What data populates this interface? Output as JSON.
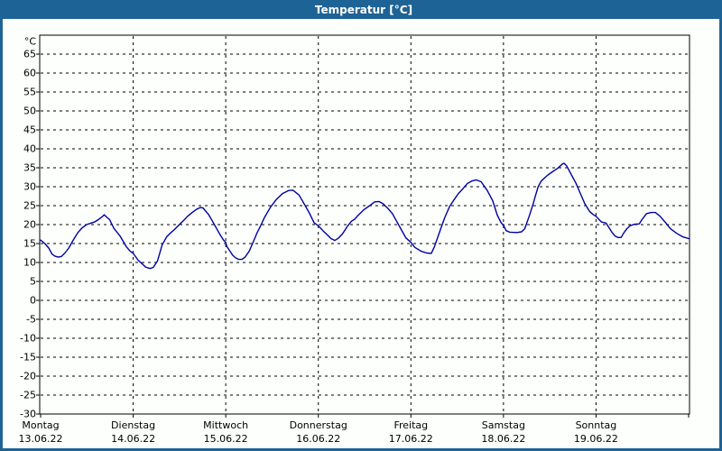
{
  "window": {
    "title": "Temperatur [°C]"
  },
  "colors": {
    "titlebar_bg": "#1E6396",
    "titlebar_text": "#FFFFFF",
    "window_border": "#1E6396",
    "background": "#FCFFFC",
    "plot_border": "#000000",
    "grid": "#000000",
    "axis_text": "#000000",
    "line": "#0000A0"
  },
  "chart_data": {
    "type": "line",
    "title": "Temperatur [°C]",
    "ylabel": "°C",
    "ylim": [
      -30,
      70
    ],
    "xlim_hours": [
      0,
      168
    ],
    "grid": "dashed, horizontal every 5°C, vertical at each day boundary",
    "legend_position": "none",
    "y_ticks": [
      65,
      60,
      55,
      50,
      45,
      40,
      35,
      30,
      25,
      20,
      15,
      10,
      5,
      0,
      -5,
      -10,
      -15,
      -20,
      -25,
      -30
    ],
    "x_ticks": [
      {
        "t": 0,
        "day": "Montag",
        "date": "13.06.22"
      },
      {
        "t": 24,
        "day": "Dienstag",
        "date": "14.06.22"
      },
      {
        "t": 48,
        "day": "Mittwoch",
        "date": "15.06.22"
      },
      {
        "t": 72,
        "day": "Donnerstag",
        "date": "16.06.22"
      },
      {
        "t": 96,
        "day": "Freitag",
        "date": "17.06.22"
      },
      {
        "t": 120,
        "day": "Samstag",
        "date": "18.06.22"
      },
      {
        "t": 144,
        "day": "Sonntag",
        "date": "19.06.22"
      },
      {
        "t": 168,
        "day": "",
        "date": ""
      }
    ],
    "series": [
      {
        "name": "Temperatur",
        "unit": "°C",
        "points": [
          [
            0,
            15.9
          ],
          [
            1.1,
            15.0
          ],
          [
            2.1,
            13.8
          ],
          [
            3,
            12.2
          ],
          [
            3.7,
            11.7
          ],
          [
            4.6,
            11.4
          ],
          [
            5.4,
            11.6
          ],
          [
            6.3,
            12.5
          ],
          [
            7.3,
            13.8
          ],
          [
            8.4,
            15.8
          ],
          [
            9.6,
            17.8
          ],
          [
            10.8,
            19.2
          ],
          [
            11.9,
            20.0
          ],
          [
            13.1,
            20.4
          ],
          [
            14,
            20.7
          ],
          [
            15.1,
            21.4
          ],
          [
            16.1,
            22.2
          ],
          [
            16.5,
            22.6
          ],
          [
            17.1,
            22.0
          ],
          [
            17.9,
            21.3
          ],
          [
            19,
            19.0
          ],
          [
            20.6,
            17.0
          ],
          [
            22.2,
            14.2
          ],
          [
            23.2,
            13.0
          ],
          [
            24,
            12.4
          ],
          [
            25.3,
            10.6
          ],
          [
            26.4,
            9.6
          ],
          [
            27.2,
            8.8
          ],
          [
            28.3,
            8.4
          ],
          [
            29.2,
            8.7
          ],
          [
            30.3,
            10.4
          ],
          [
            31.5,
            14.6
          ],
          [
            32.7,
            16.8
          ],
          [
            33.7,
            17.8
          ],
          [
            34.6,
            18.6
          ],
          [
            35.8,
            19.8
          ],
          [
            37,
            21.0
          ],
          [
            38.1,
            22.2
          ],
          [
            39.3,
            23.2
          ],
          [
            40.5,
            24.1
          ],
          [
            41.4,
            24.5
          ],
          [
            42.1,
            24.4
          ],
          [
            43.6,
            22.6
          ],
          [
            44.5,
            21.0
          ],
          [
            45.6,
            19.0
          ],
          [
            46.6,
            17.2
          ],
          [
            47.5,
            15.8
          ],
          [
            48,
            15.3
          ],
          [
            48.3,
            14.2
          ],
          [
            49.1,
            13.0
          ],
          [
            49.8,
            11.9
          ],
          [
            50.6,
            11.2
          ],
          [
            51.4,
            10.8
          ],
          [
            52.2,
            10.8
          ],
          [
            53,
            11.4
          ],
          [
            54.1,
            13.0
          ],
          [
            55.3,
            15.8
          ],
          [
            56.1,
            17.8
          ],
          [
            56.9,
            19.4
          ],
          [
            58,
            21.8
          ],
          [
            59.6,
            24.6
          ],
          [
            61.1,
            26.6
          ],
          [
            62.7,
            28.2
          ],
          [
            64.3,
            29.0
          ],
          [
            65.4,
            29.1
          ],
          [
            67,
            27.8
          ],
          [
            68.6,
            25.0
          ],
          [
            69.7,
            23.0
          ],
          [
            70.9,
            20.5
          ],
          [
            72,
            19.7
          ],
          [
            73.2,
            18.4
          ],
          [
            74.4,
            17.2
          ],
          [
            75.3,
            16.3
          ],
          [
            76.3,
            15.8
          ],
          [
            77.2,
            16.4
          ],
          [
            78.3,
            17.6
          ],
          [
            79.5,
            19.5
          ],
          [
            80.6,
            20.9
          ],
          [
            81.4,
            21.4
          ],
          [
            82.2,
            22.3
          ],
          [
            83.8,
            23.9
          ],
          [
            85.3,
            25.0
          ],
          [
            86.6,
            26.0
          ],
          [
            87.7,
            26.1
          ],
          [
            88.8,
            25.5
          ],
          [
            90,
            24.3
          ],
          [
            91.2,
            22.9
          ],
          [
            92.4,
            20.7
          ],
          [
            93.5,
            18.7
          ],
          [
            94.7,
            16.5
          ],
          [
            96,
            15.3
          ],
          [
            97,
            14.0
          ],
          [
            98.6,
            13.0
          ],
          [
            100.1,
            12.5
          ],
          [
            101.3,
            12.4
          ],
          [
            102.1,
            14.2
          ],
          [
            103.7,
            18.8
          ],
          [
            104.8,
            21.9
          ],
          [
            106,
            24.7
          ],
          [
            107.2,
            26.6
          ],
          [
            108.3,
            28.2
          ],
          [
            109.5,
            29.5
          ],
          [
            110.7,
            30.9
          ],
          [
            111.8,
            31.5
          ],
          [
            112.9,
            31.8
          ],
          [
            114.2,
            31.3
          ],
          [
            115.8,
            29.0
          ],
          [
            117.2,
            26.3
          ],
          [
            118.4,
            22.5
          ],
          [
            119.4,
            20.5
          ],
          [
            120,
            19.8
          ],
          [
            120.7,
            18.4
          ],
          [
            121.6,
            18.0
          ],
          [
            123.5,
            17.9
          ],
          [
            124.7,
            18.1
          ],
          [
            125.5,
            18.9
          ],
          [
            126.7,
            22.3
          ],
          [
            127.8,
            25.8
          ],
          [
            128.2,
            27.3
          ],
          [
            129,
            30.0
          ],
          [
            129.8,
            31.5
          ],
          [
            131.4,
            33.0
          ],
          [
            132.5,
            33.8
          ],
          [
            134.1,
            34.9
          ],
          [
            135.3,
            36.0
          ],
          [
            135.7,
            36.2
          ],
          [
            136.4,
            35.5
          ],
          [
            137.2,
            33.9
          ],
          [
            138.8,
            30.9
          ],
          [
            139.9,
            28.3
          ],
          [
            141.1,
            25.5
          ],
          [
            142.3,
            23.5
          ],
          [
            143.2,
            22.7
          ],
          [
            144,
            22.2
          ],
          [
            145.4,
            20.7
          ],
          [
            146.6,
            20.4
          ],
          [
            148.1,
            18.0
          ],
          [
            148.9,
            17.0
          ],
          [
            149.7,
            16.6
          ],
          [
            150.5,
            16.6
          ],
          [
            151.2,
            17.8
          ],
          [
            152,
            18.9
          ],
          [
            152.8,
            19.7
          ],
          [
            154,
            20.1
          ],
          [
            155.2,
            20.2
          ],
          [
            155.9,
            21.3
          ],
          [
            157.1,
            22.9
          ],
          [
            158.3,
            23.2
          ],
          [
            159.4,
            23.2
          ],
          [
            160.6,
            22.2
          ],
          [
            162.2,
            20.3
          ],
          [
            163.3,
            18.9
          ],
          [
            164.9,
            17.7
          ],
          [
            166.4,
            16.8
          ],
          [
            168,
            16.3
          ]
        ]
      }
    ]
  }
}
